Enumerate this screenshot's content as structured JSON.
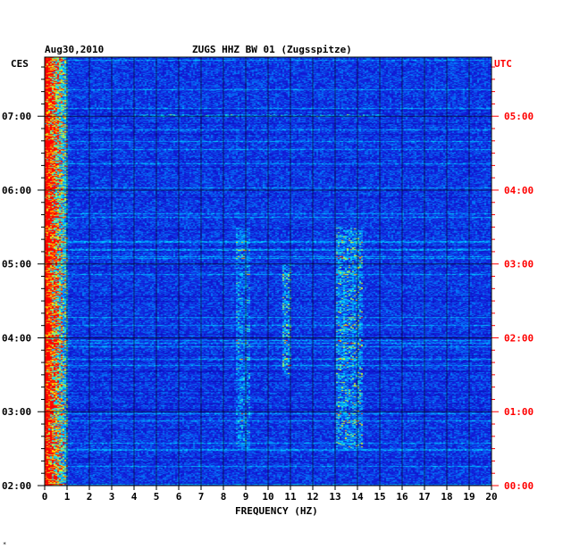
{
  "header": {
    "date": "Aug30,2010",
    "station": "ZUGS HHZ BW 01 (Zugsspitze)",
    "left_tz": "CES",
    "right_tz": "UTC"
  },
  "footer_mark": "*",
  "chart_data": {
    "type": "heatmap",
    "title": "ZUGS HHZ BW 01 (Zugsspitze)",
    "date": "Aug30,2010",
    "xlabel": "FREQUENCY (HZ)",
    "xlim": [
      0,
      20
    ],
    "x_ticks": [
      "0",
      "1",
      "2",
      "3",
      "4",
      "5",
      "6",
      "7",
      "8",
      "9",
      "10",
      "11",
      "12",
      "13",
      "14",
      "15",
      "16",
      "17",
      "18",
      "19",
      "20"
    ],
    "y_left_label": "CES",
    "y_right_label": "UTC",
    "y_left_ticks": [
      "07:00",
      "06:00",
      "05:00",
      "04:00",
      "03:00",
      "02:00"
    ],
    "y_right_ticks": [
      "05:00",
      "04:00",
      "03:00",
      "02:00",
      "01:00",
      "00:00"
    ],
    "ylim_ces_hours": [
      2.0,
      7.8
    ],
    "grid": true,
    "colors": {
      "background": "#1010c8",
      "low": "#0000a0",
      "mid": "#00c8ff",
      "high": "#ffff00",
      "peak": "#ff0000",
      "grid": "#000000"
    },
    "features": [
      {
        "name": "low-frequency band",
        "freq_hz": [
          0.0,
          1.0
        ],
        "time_ces": [
          2.0,
          7.8
        ],
        "intensity": "high"
      },
      {
        "name": "band near 9 Hz",
        "freq_hz": [
          8.5,
          9.2
        ],
        "time_ces": [
          2.5,
          5.5
        ],
        "intensity": "medium"
      },
      {
        "name": "band near 10.8 Hz",
        "freq_hz": [
          10.6,
          11.0
        ],
        "time_ces": [
          3.5,
          5.0
        ],
        "intensity": "high"
      },
      {
        "name": "band near 13.5 Hz",
        "freq_hz": [
          13.0,
          14.2
        ],
        "time_ces": [
          2.5,
          5.5
        ],
        "intensity": "high"
      },
      {
        "name": "broadband line",
        "freq_hz": [
          4.0,
          15.0
        ],
        "time_ces": [
          7.0,
          7.03
        ],
        "intensity": "medium"
      }
    ]
  }
}
